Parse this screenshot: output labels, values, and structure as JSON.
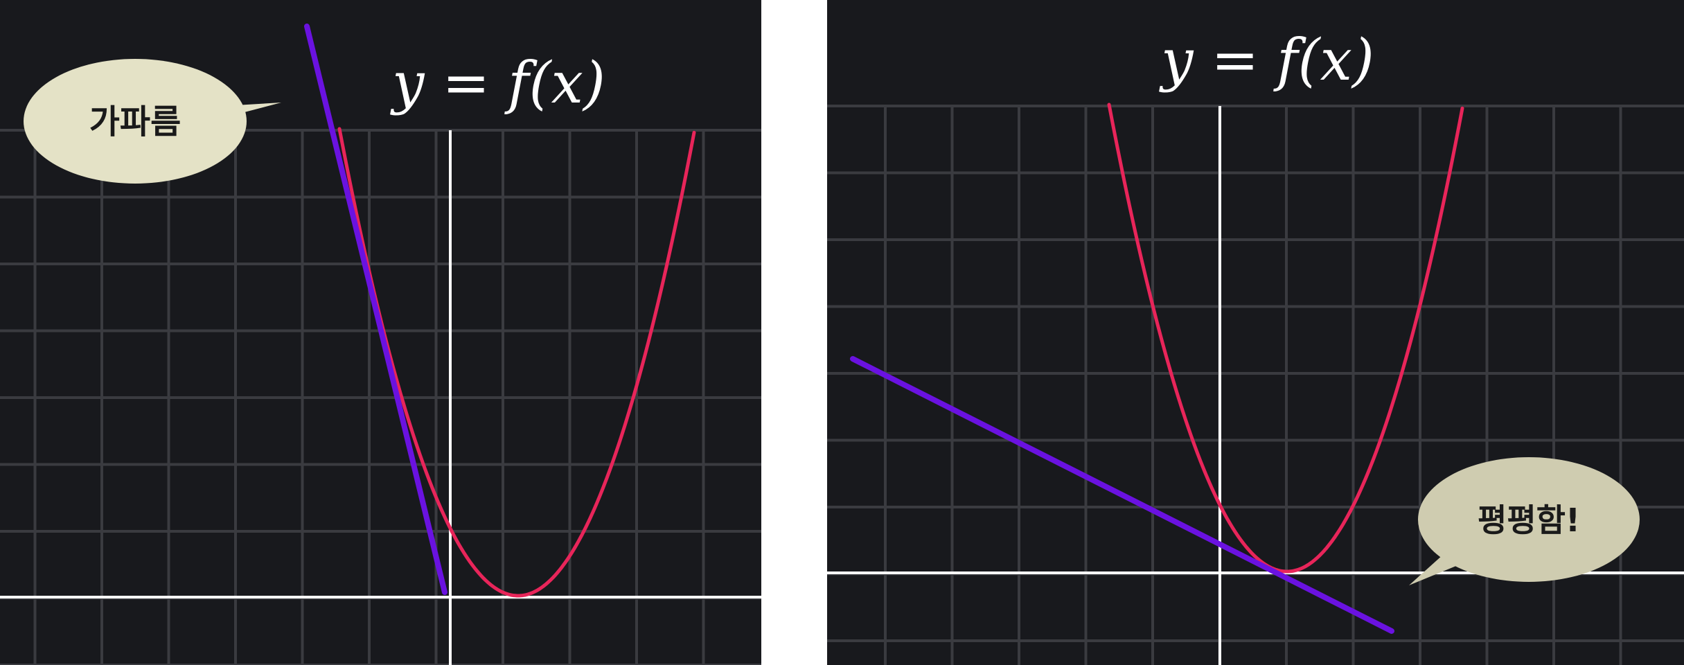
{
  "panels": [
    {
      "equation": "y = f(x)",
      "bubble_label": "가파름",
      "colors": {
        "background": "#18191d",
        "grid": "#3a3b40",
        "axis": "#ffffff",
        "curve": "#e8255a",
        "tangent": "#6a12e0",
        "bubble": "#e4e2c6"
      }
    },
    {
      "equation": "y = f(x)",
      "bubble_label": "평평함!",
      "colors": {
        "background": "#18191d",
        "grid": "#3a3b40",
        "axis": "#ffffff",
        "curve": "#e8255a",
        "tangent": "#6a12e0",
        "bubble": "#cfccb0"
      }
    }
  ]
}
